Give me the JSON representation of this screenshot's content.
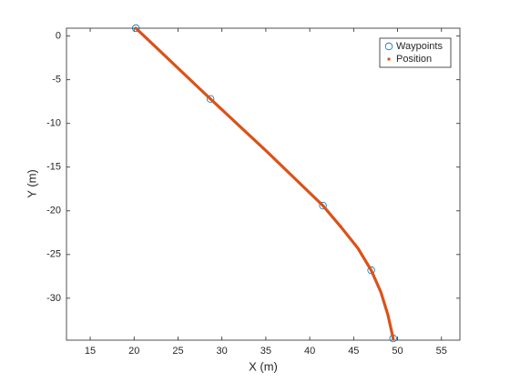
{
  "chart_data": {
    "type": "scatter",
    "xlabel": "X (m)",
    "ylabel": "Y (m)",
    "xlim": [
      12.3,
      57.1
    ],
    "ylim": [
      -34.8,
      0.9
    ],
    "xticks": [
      15,
      20,
      25,
      30,
      35,
      40,
      45,
      50,
      55
    ],
    "yticks": [
      -30,
      -25,
      -20,
      -15,
      -10,
      -5,
      0
    ],
    "legend": "northeast",
    "series": [
      {
        "name": "Waypoints",
        "color": "#0072bd",
        "marker": "circle",
        "x": [
          20.2,
          28.7,
          41.5,
          47.0,
          49.5
        ],
        "values": [
          0.9,
          -7.2,
          -19.4,
          -26.8,
          -34.6
        ]
      },
      {
        "name": "Position",
        "color": "#d95319",
        "marker": "dot",
        "x": [
          20.2,
          22.3,
          24.4,
          26.6,
          28.7,
          31.9,
          35.1,
          38.3,
          41.5,
          43.6,
          45.5,
          47.0,
          48.1,
          48.9,
          49.5
        ],
        "values": [
          0.9,
          -1.1,
          -3.1,
          -5.2,
          -7.2,
          -10.2,
          -13.2,
          -16.3,
          -19.4,
          -21.9,
          -24.3,
          -26.8,
          -29.3,
          -31.9,
          -34.6
        ]
      }
    ]
  }
}
